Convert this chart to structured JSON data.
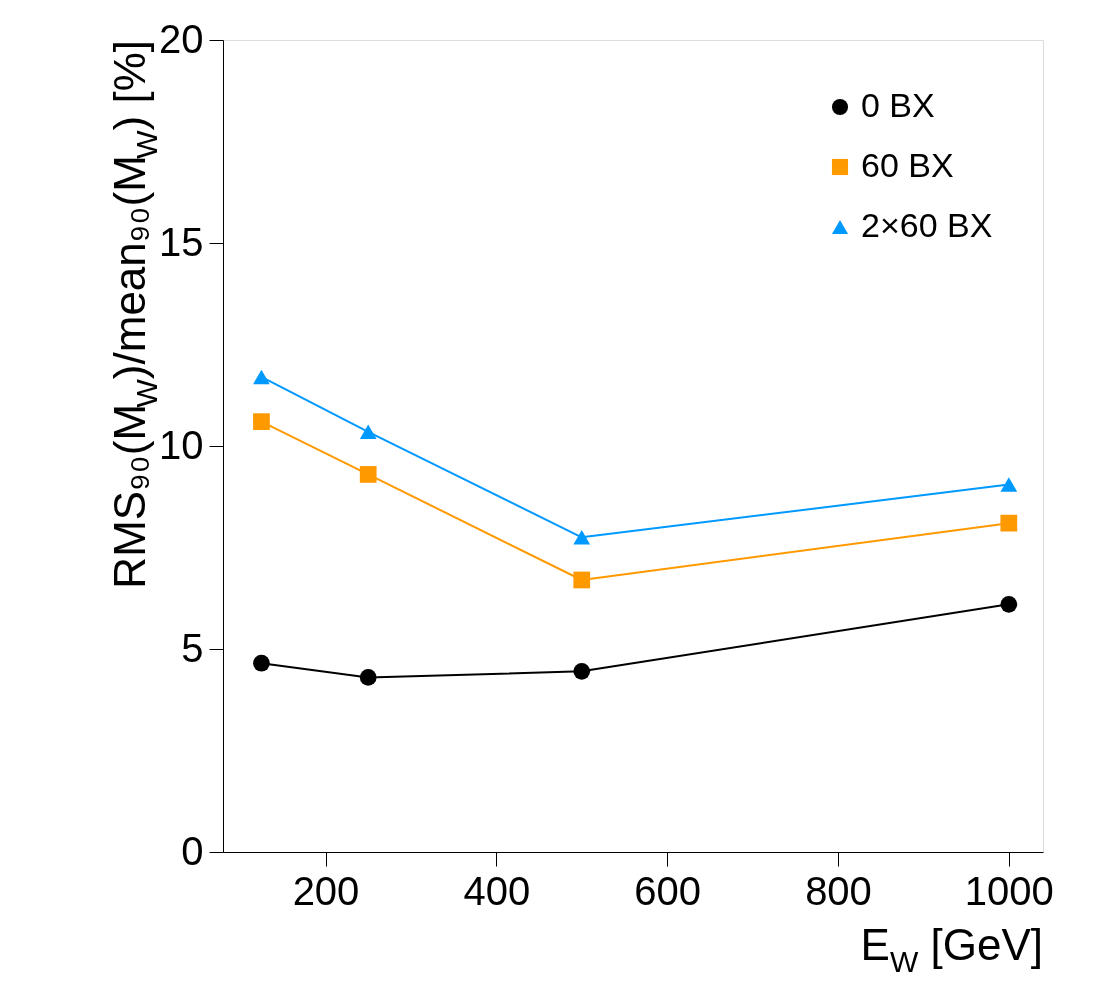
{
  "chart_data": {
    "type": "line",
    "xlabel": "E$_{W}$ [GeV]",
    "ylabel": "RMS₉₀(M$_{W}$)/mean₉₀(M$_{W}$) [%]",
    "x": [
      125,
      250,
      500,
      1000
    ],
    "series": [
      {
        "name": "0 BX",
        "color": "#000000",
        "marker": "circle",
        "values": [
          4.65,
          4.3,
          4.45,
          6.1
        ]
      },
      {
        "name": "60 BX",
        "color": "#ff9900",
        "marker": "square",
        "values": [
          10.6,
          9.3,
          6.7,
          8.1
        ]
      },
      {
        "name": "2×60 BX",
        "color": "#0099ff",
        "marker": "triangle",
        "values": [
          11.7,
          10.35,
          7.75,
          9.05
        ]
      }
    ],
    "xlim": [
      80,
      1040
    ],
    "xticks": [
      200,
      400,
      600,
      800,
      1000
    ],
    "ylim": [
      0,
      20
    ],
    "yticks": [
      0,
      5,
      10,
      15,
      20
    ],
    "grid": false,
    "legend": "top right",
    "line_style": "solid"
  }
}
